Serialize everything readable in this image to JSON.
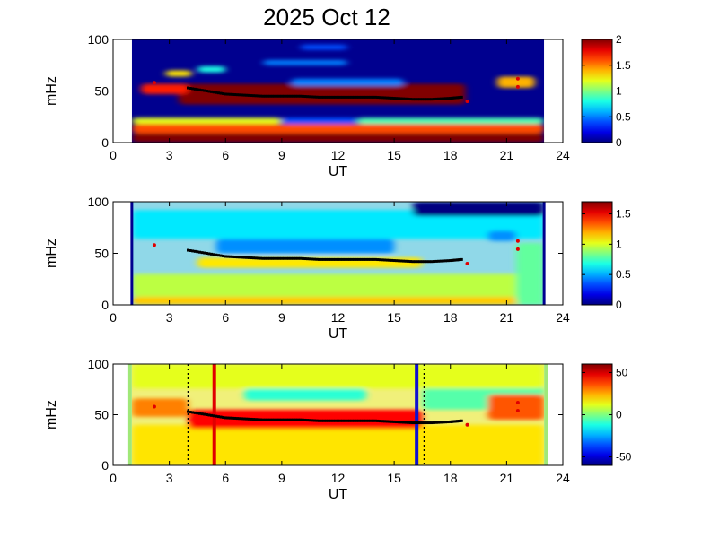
{
  "figure": {
    "title": "2025 Oct 12"
  },
  "chart_data": [
    {
      "type": "heatmap",
      "name": "panel-1",
      "xlabel": "UT",
      "ylabel": "mHz",
      "xlim": [
        0,
        24
      ],
      "ylim": [
        0,
        100
      ],
      "xticks": [
        0,
        3,
        6,
        9,
        12,
        15,
        18,
        21,
        24
      ],
      "yticks": [
        0,
        50,
        100
      ],
      "data_extent_ut": [
        1,
        23
      ],
      "colorbar": {
        "min": 0,
        "max": 2,
        "ticks": [
          0,
          0.5,
          1,
          1.5,
          2
        ],
        "tick_labels": [
          "0",
          "0.5",
          "1",
          "1.5",
          "2"
        ],
        "colormap": "jet"
      },
      "background": "#00008f",
      "blobs": [
        {
          "x": [
            1.0,
            23.0
          ],
          "y": [
            0,
            9
          ],
          "v": 2.0
        },
        {
          "x": [
            1.0,
            23.0
          ],
          "y": [
            9,
            18
          ],
          "v": 1.6
        },
        {
          "x": [
            1.0,
            9.0
          ],
          "y": [
            18,
            24
          ],
          "v": 1.2
        },
        {
          "x": [
            9.0,
            13.0
          ],
          "y": [
            18,
            24
          ],
          "v": 0.4
        },
        {
          "x": [
            13.0,
            23.0
          ],
          "y": [
            18,
            24
          ],
          "v": 0.9
        },
        {
          "x": [
            3.5,
            18.8
          ],
          "y": [
            37,
            57
          ],
          "v": 2.0
        },
        {
          "x": [
            1.5,
            4.0
          ],
          "y": [
            47,
            57
          ],
          "v": 1.7
        },
        {
          "x": [
            2.8,
            4.2
          ],
          "y": [
            64,
            70
          ],
          "v": 1.3
        },
        {
          "x": [
            4.5,
            6.0
          ],
          "y": [
            68,
            74
          ],
          "v": 0.8
        },
        {
          "x": [
            8.0,
            12.5
          ],
          "y": [
            75,
            80
          ],
          "v": 0.5
        },
        {
          "x": [
            9.5,
            15.5
          ],
          "y": [
            55,
            62
          ],
          "v": 0.5
        },
        {
          "x": [
            10.0,
            12.5
          ],
          "y": [
            90,
            95
          ],
          "v": 0.4
        },
        {
          "x": [
            20.5,
            22.5
          ],
          "y": [
            53,
            64
          ],
          "v": 1.4
        }
      ],
      "trace": {
        "x": [
          4.0,
          5.0,
          6.0,
          7.0,
          8.0,
          9.0,
          10.0,
          11.0,
          12.0,
          13.0,
          14.0,
          15.0,
          16.0,
          17.0,
          18.0,
          18.6
        ],
        "y": [
          53,
          50,
          47,
          46,
          45,
          45,
          45,
          44,
          44,
          44,
          44,
          43,
          42,
          42,
          43,
          44
        ]
      },
      "red_points": [
        {
          "x": 2.2,
          "y": 58
        },
        {
          "x": 18.9,
          "y": 40
        },
        {
          "x": 21.6,
          "y": 62
        },
        {
          "x": 21.6,
          "y": 54
        }
      ]
    },
    {
      "type": "heatmap",
      "name": "panel-2",
      "xlabel": "UT",
      "ylabel": "mHz",
      "xlim": [
        0,
        24
      ],
      "ylim": [
        0,
        100
      ],
      "xticks": [
        0,
        3,
        6,
        9,
        12,
        15,
        18,
        21,
        24
      ],
      "yticks": [
        0,
        50,
        100
      ],
      "data_extent_ut": [
        1,
        23
      ],
      "colorbar": {
        "min": 0,
        "max": 1.7,
        "ticks": [
          0,
          0.5,
          1,
          1.5
        ],
        "tick_labels": [
          "0",
          "0.5",
          "1",
          "1.5"
        ],
        "colormap": "jet"
      },
      "background": "#90d8e8",
      "blobs": [
        {
          "x": [
            1.0,
            23.0
          ],
          "y": [
            0,
            8
          ],
          "v": 1.15
        },
        {
          "x": [
            1.0,
            23.0
          ],
          "y": [
            8,
            30
          ],
          "v": 0.95
        },
        {
          "x": [
            4.5,
            16.5
          ],
          "y": [
            36,
            46
          ],
          "v": 1.1
        },
        {
          "x": [
            5.5,
            15.0
          ],
          "y": [
            50,
            64
          ],
          "v": 0.45
        },
        {
          "x": [
            1.0,
            23.0
          ],
          "y": [
            64,
            92
          ],
          "v": 0.6
        },
        {
          "x": [
            16.0,
            23.0
          ],
          "y": [
            86,
            100
          ],
          "v": 0.0
        },
        {
          "x": [
            20.0,
            21.5
          ],
          "y": [
            62,
            72
          ],
          "v": 0.45
        },
        {
          "x": [
            21.5,
            23.0
          ],
          "y": [
            0,
            60
          ],
          "v": 0.8
        }
      ],
      "trace": {
        "x": [
          4.0,
          5.0,
          6.0,
          7.0,
          8.0,
          9.0,
          10.0,
          11.0,
          12.0,
          13.0,
          14.0,
          15.0,
          16.0,
          17.0,
          18.0,
          18.6
        ],
        "y": [
          53,
          50,
          47,
          46,
          45,
          45,
          45,
          44,
          44,
          44,
          44,
          43,
          42,
          42,
          43,
          44
        ]
      },
      "red_points": [
        {
          "x": 2.2,
          "y": 58
        },
        {
          "x": 18.9,
          "y": 40
        },
        {
          "x": 21.6,
          "y": 62
        },
        {
          "x": 21.6,
          "y": 54
        }
      ]
    },
    {
      "type": "heatmap",
      "name": "panel-3",
      "xlabel": "UT",
      "ylabel": "mHz",
      "xlim": [
        0,
        24
      ],
      "ylim": [
        0,
        100
      ],
      "xticks": [
        0,
        3,
        6,
        9,
        12,
        15,
        18,
        21,
        24
      ],
      "yticks": [
        0,
        50,
        100
      ],
      "data_extent_ut": [
        1,
        23
      ],
      "colorbar": {
        "min": -60,
        "max": 60,
        "ticks": [
          -50,
          0,
          50
        ],
        "tick_labels": [
          "-50",
          "0",
          "50"
        ],
        "colormap": "jet"
      },
      "background": "#f0f07a",
      "blobs": [
        {
          "x": [
            1.0,
            23.0
          ],
          "y": [
            0,
            40
          ],
          "v": 18
        },
        {
          "x": [
            4.0,
            16.5
          ],
          "y": [
            36,
            55
          ],
          "v": 45
        },
        {
          "x": [
            1.0,
            4.0
          ],
          "y": [
            48,
            66
          ],
          "v": 30
        },
        {
          "x": [
            7.0,
            13.5
          ],
          "y": [
            64,
            76
          ],
          "v": -10
        },
        {
          "x": [
            16.5,
            23.0
          ],
          "y": [
            55,
            92
          ],
          "v": -5
        },
        {
          "x": [
            16.5,
            23.0
          ],
          "y": [
            88,
            100
          ],
          "v": -55
        },
        {
          "x": [
            20.0,
            23.0
          ],
          "y": [
            45,
            70
          ],
          "v": 35
        },
        {
          "x": [
            1.0,
            23.0
          ],
          "y": [
            76,
            100
          ],
          "v": 12
        }
      ],
      "trace": {
        "x": [
          4.0,
          5.0,
          6.0,
          7.0,
          8.0,
          9.0,
          10.0,
          11.0,
          12.0,
          13.0,
          14.0,
          15.0,
          16.0,
          17.0,
          18.0,
          18.6
        ],
        "y": [
          53,
          50,
          47,
          46,
          45,
          45,
          45,
          44,
          44,
          44,
          44,
          43,
          42,
          42,
          43,
          44
        ]
      },
      "red_points": [
        {
          "x": 2.2,
          "y": 58
        },
        {
          "x": 18.9,
          "y": 40
        },
        {
          "x": 21.6,
          "y": 62
        },
        {
          "x": 21.6,
          "y": 54
        }
      ],
      "vertical_lines": [
        {
          "x": 5.4,
          "color": "#e00000"
        },
        {
          "x": 16.2,
          "color": "#1010d0"
        }
      ],
      "dotted_lines": [
        {
          "x": 4.0
        },
        {
          "x": 16.6
        }
      ],
      "edge_strips": {
        "x": [
          1.0,
          23.0
        ],
        "color": "#a0e878"
      }
    }
  ]
}
